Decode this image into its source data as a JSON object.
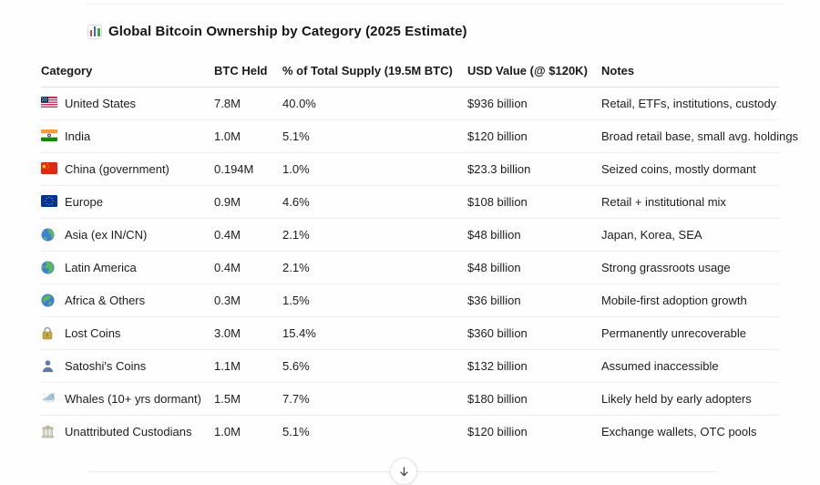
{
  "title": {
    "icon": "bar-chart-icon",
    "text": "Global Bitcoin Ownership by Category (2025 Estimate)"
  },
  "table": {
    "columns": [
      "Category",
      "BTC Held",
      "% of Total Supply (19.5M BTC)",
      "USD Value (@ $120K)",
      "Notes"
    ],
    "rows": [
      {
        "icon": "flag-us-icon",
        "category": "United States",
        "btc_held": "7.8M",
        "pct_supply": "40.0%",
        "usd_value": "$936 billion",
        "notes": "Retail, ETFs, institutions, custody"
      },
      {
        "icon": "flag-india-icon",
        "category": "India",
        "btc_held": "1.0M",
        "pct_supply": "5.1%",
        "usd_value": "$120 billion",
        "notes": "Broad retail base, small avg. holdings"
      },
      {
        "icon": "flag-china-icon",
        "category": "China (government)",
        "btc_held": "0.194M",
        "pct_supply": "1.0%",
        "usd_value": "$23.3 billion",
        "notes": "Seized coins, mostly dormant"
      },
      {
        "icon": "flag-eu-icon",
        "category": "Europe",
        "btc_held": "0.9M",
        "pct_supply": "4.6%",
        "usd_value": "$108 billion",
        "notes": "Retail + institutional mix"
      },
      {
        "icon": "globe-asia-icon",
        "category": "Asia (ex IN/CN)",
        "btc_held": "0.4M",
        "pct_supply": "2.1%",
        "usd_value": "$48 billion",
        "notes": "Japan, Korea, SEA"
      },
      {
        "icon": "globe-americas-icon",
        "category": "Latin America",
        "btc_held": "0.4M",
        "pct_supply": "2.1%",
        "usd_value": "$48 billion",
        "notes": "Strong grassroots usage"
      },
      {
        "icon": "globe-africa-icon",
        "category": "Africa & Others",
        "btc_held": "0.3M",
        "pct_supply": "1.5%",
        "usd_value": "$36 billion",
        "notes": "Mobile-first adoption growth"
      },
      {
        "icon": "lock-icon",
        "category": "Lost Coins",
        "btc_held": "3.0M",
        "pct_supply": "15.4%",
        "usd_value": "$360 billion",
        "notes": "Permanently unrecoverable"
      },
      {
        "icon": "person-silhouette-icon",
        "category": "Satoshi's Coins",
        "btc_held": "1.1M",
        "pct_supply": "5.6%",
        "usd_value": "$132 billion",
        "notes": "Assumed inaccessible"
      },
      {
        "icon": "whale-icon",
        "category": "Whales (10+ yrs dormant)",
        "btc_held": "1.5M",
        "pct_supply": "7.7%",
        "usd_value": "$180 billion",
        "notes": "Likely held by early adopters"
      },
      {
        "icon": "classical-building-icon",
        "category": "Unattributed Custodians",
        "btc_held": "1.0M",
        "pct_supply": "5.1%",
        "usd_value": "$120 billion",
        "notes": "Exchange wallets, OTC pools"
      }
    ]
  },
  "scroll_button": {
    "icon": "arrow-down-icon"
  },
  "colors": {
    "text": "#1b1b1b",
    "divider": "#ededed",
    "header_divider": "#e2e2e2",
    "background": "#fefefe",
    "title_bar_red": "#e03e36",
    "title_bar_blue": "#2a6fdb",
    "title_bar_green": "#3fa54a"
  }
}
